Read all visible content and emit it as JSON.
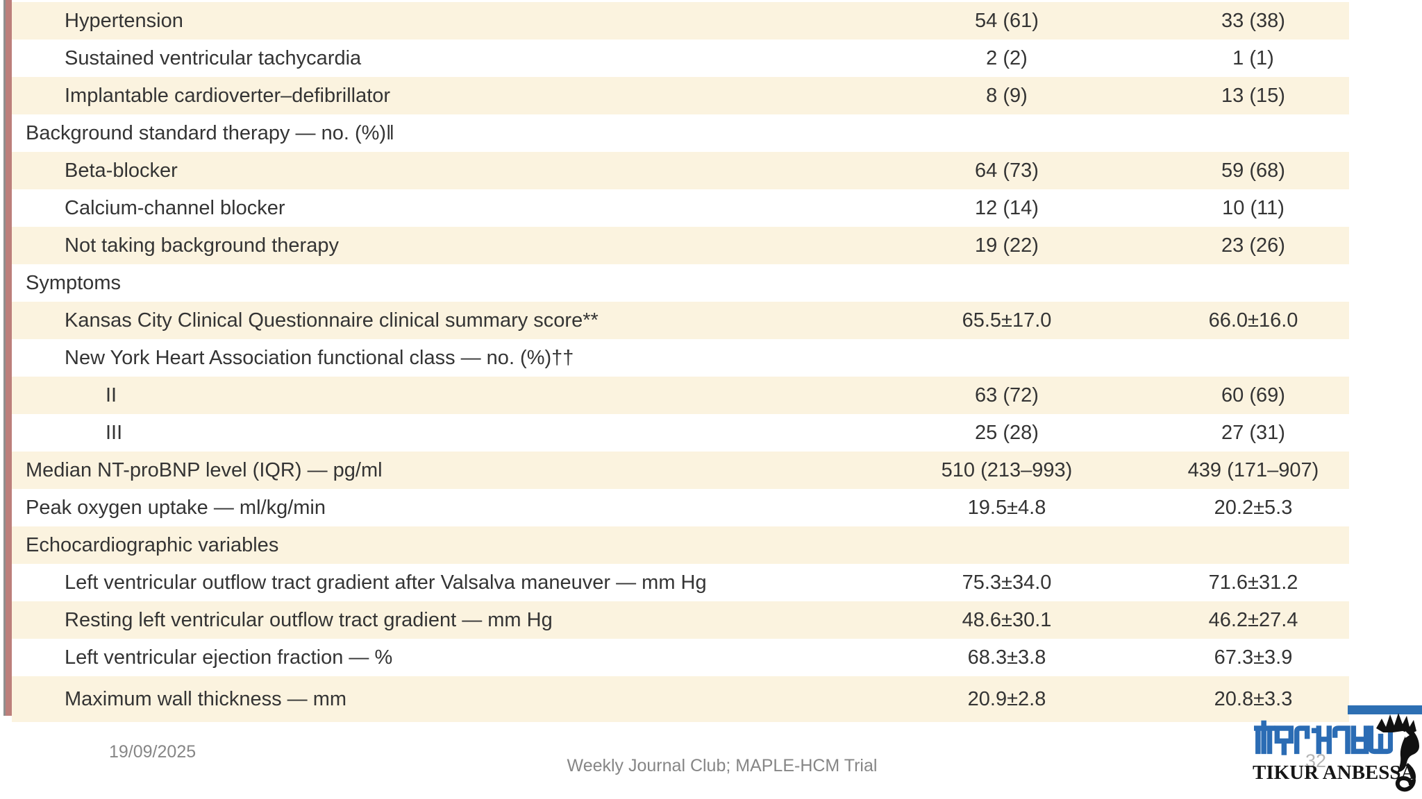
{
  "table": {
    "style": {
      "row_cream": "#fbf3df",
      "row_white": "#ffffff",
      "left_stripe_color": "#bc7f7b",
      "left_edge_line_color": "#8f8f8f",
      "text_color": "#343434"
    },
    "columns": [
      "label",
      "value1",
      "value2"
    ],
    "rows": [
      {
        "label": "Hypertension",
        "indent": 1,
        "shade": "cream",
        "value1": "54 (61)",
        "value2": "33 (38)"
      },
      {
        "label": "Sustained ventricular tachycardia",
        "indent": 1,
        "shade": "white",
        "value1": "2 (2)",
        "value2": "1 (1)"
      },
      {
        "label": "Implantable cardioverter–defibrillator",
        "indent": 1,
        "shade": "cream",
        "value1": "8 (9)",
        "value2": "13 (15)"
      },
      {
        "label": "Background standard therapy — no. (%)‖",
        "indent": 0,
        "shade": "white",
        "value1": "",
        "value2": ""
      },
      {
        "label": "Beta-blocker",
        "indent": 1,
        "shade": "cream",
        "value1": "64 (73)",
        "value2": "59 (68)"
      },
      {
        "label": "Calcium-channel blocker",
        "indent": 1,
        "shade": "white",
        "value1": "12 (14)",
        "value2": "10 (11)"
      },
      {
        "label": "Not taking background therapy",
        "indent": 1,
        "shade": "cream",
        "value1": "19 (22)",
        "value2": "23 (26)"
      },
      {
        "label": "Symptoms",
        "indent": 0,
        "shade": "white",
        "value1": "",
        "value2": ""
      },
      {
        "label": "Kansas City Clinical Questionnaire clinical summary score**",
        "indent": 1,
        "shade": "cream",
        "value1": "65.5±17.0",
        "value2": "66.0±16.0"
      },
      {
        "label": "New York Heart Association functional class — no. (%)††",
        "indent": 1,
        "shade": "white",
        "value1": "",
        "value2": ""
      },
      {
        "label": "II",
        "indent": 2,
        "shade": "cream",
        "value1": "63 (72)",
        "value2": "60 (69)"
      },
      {
        "label": "III",
        "indent": 2,
        "shade": "white",
        "value1": "25 (28)",
        "value2": "27 (31)"
      },
      {
        "label": "Median NT-proBNP level (IQR) — pg/ml",
        "indent": 0,
        "shade": "cream",
        "value1": "510 (213–993)",
        "value2": "439 (171–907)"
      },
      {
        "label": "Peak oxygen uptake — ml/kg/min",
        "indent": 0,
        "shade": "white",
        "value1": "19.5±4.8",
        "value2": "20.2±5.3"
      },
      {
        "label": "Echocardiographic variables",
        "indent": 0,
        "shade": "cream",
        "value1": "",
        "value2": ""
      },
      {
        "label": "Left ventricular outflow tract gradient after Valsalva maneuver — mm Hg",
        "indent": 1,
        "shade": "white",
        "value1": "75.3±34.0",
        "value2": "71.6±31.2"
      },
      {
        "label": "Resting left ventricular outflow tract gradient — mm Hg",
        "indent": 1,
        "shade": "cream",
        "value1": "48.6±30.1",
        "value2": "46.2±27.4"
      },
      {
        "label": "Left ventricular ejection fraction — %",
        "indent": 1,
        "shade": "white",
        "value1": "68.3±3.8",
        "value2": "67.3±3.9"
      },
      {
        "label": "Maximum wall thickness — mm",
        "indent": 1,
        "shade": "cream",
        "value1": "20.9±2.8",
        "value2": "20.8±3.3"
      }
    ]
  },
  "footer": {
    "date": "19/09/2025",
    "center_text": "Weekly Journal Club; MAPLE-HCM Trial",
    "page_number": "32"
  },
  "logo": {
    "amharic_text": "ጥቁር አንበሳ",
    "latin_text": "TIKUR ANBESSA",
    "lion_icon": "lion-head-line-art",
    "blue": "#2d6fb3",
    "accent_bar_color": "#2d6fb3"
  }
}
